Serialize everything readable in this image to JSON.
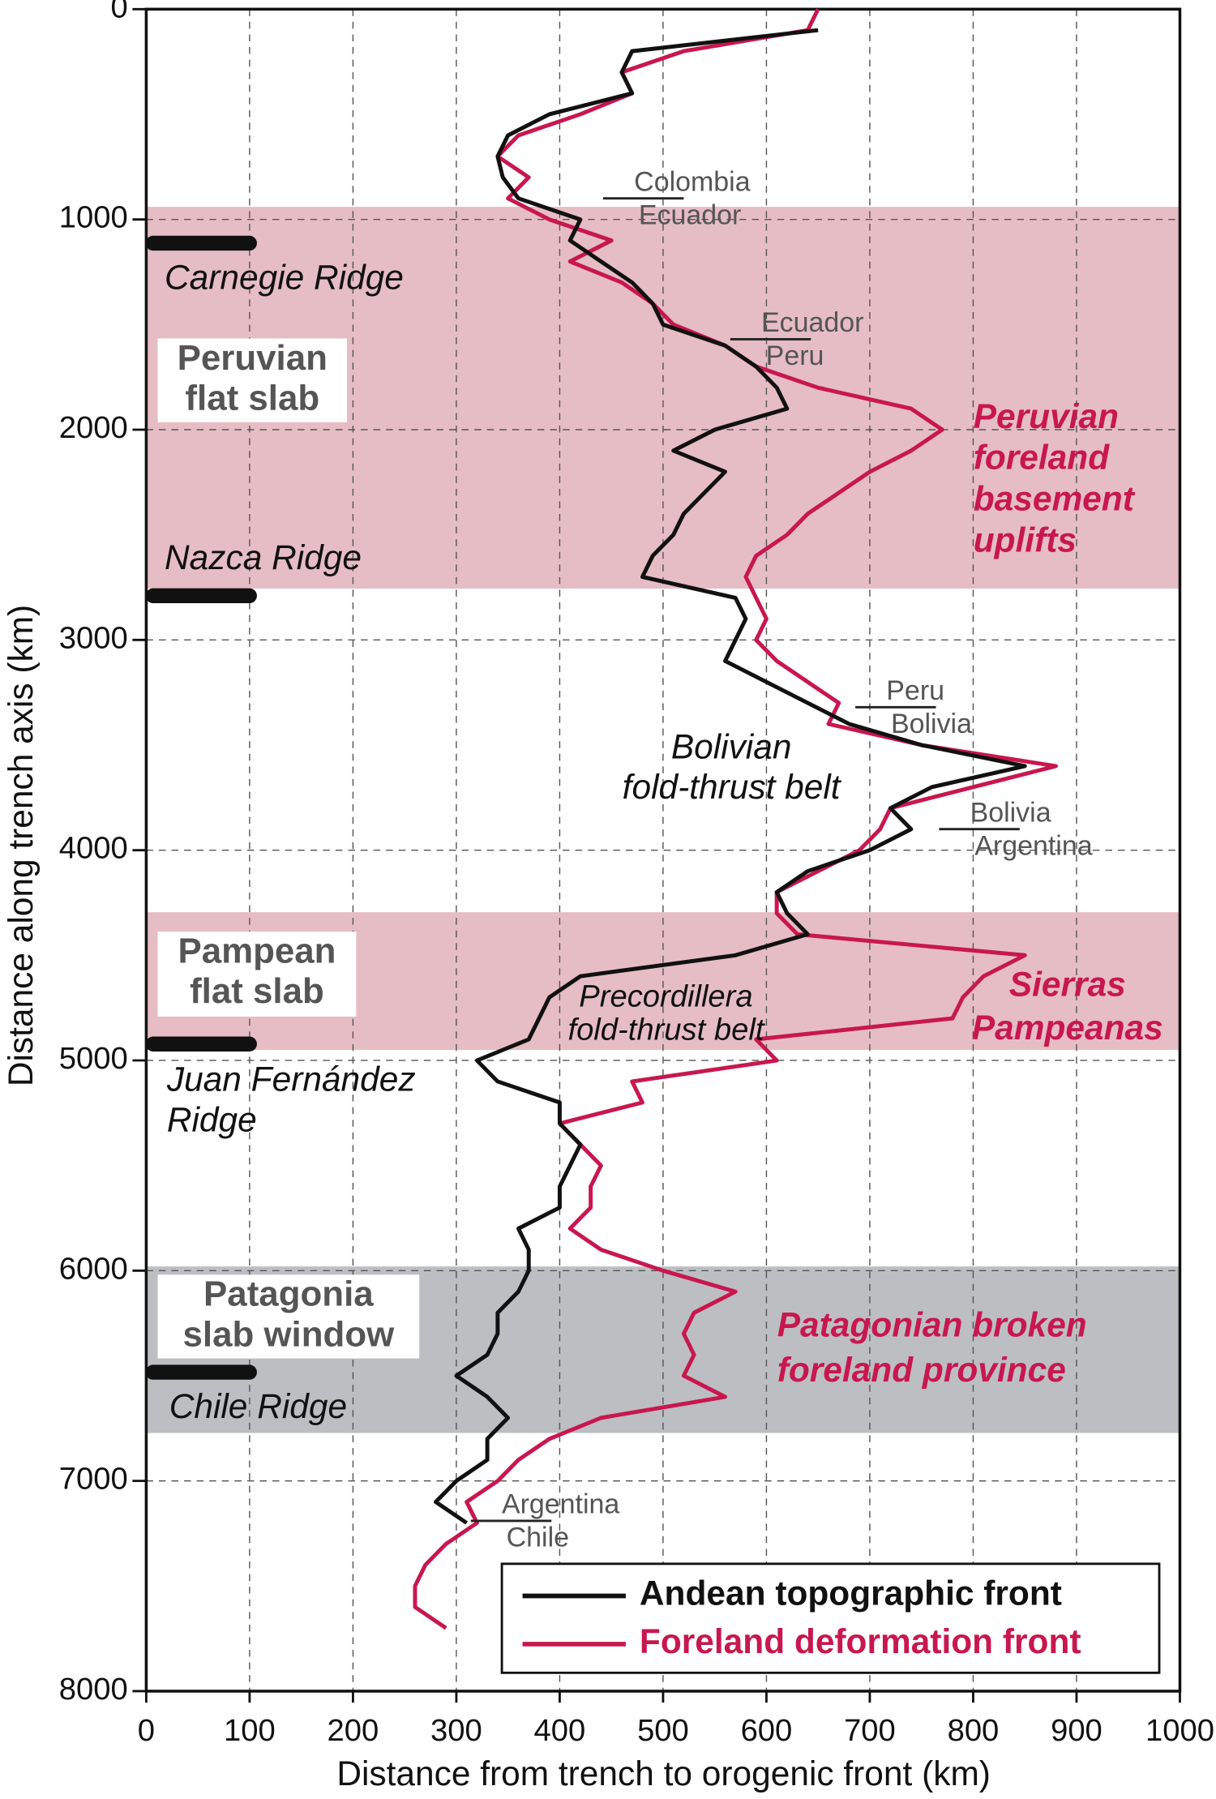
{
  "chart_data": {
    "type": "line",
    "x_label": "Distance from trench to orogenic front (km)",
    "y_label": "Distance along trench axis (km)",
    "xlim": [
      0,
      1000
    ],
    "xticks": [
      0,
      100,
      200,
      300,
      400,
      500,
      600,
      700,
      800,
      900,
      1000
    ],
    "ylim": [
      0,
      8000
    ],
    "yticks": [
      0,
      1000,
      2000,
      3000,
      4000,
      5000,
      6000,
      7000,
      8000
    ],
    "y_inverted": true,
    "grid": true,
    "legend": "lower right",
    "along": [
      0,
      100,
      200,
      300,
      400,
      500,
      600,
      700,
      800,
      900,
      1000,
      1100,
      1200,
      1300,
      1400,
      1500,
      1600,
      1700,
      1800,
      1900,
      2000,
      2100,
      2200,
      2300,
      2400,
      2500,
      2600,
      2700,
      2800,
      2900,
      3000,
      3100,
      3200,
      3300,
      3400,
      3500,
      3600,
      3700,
      3800,
      3900,
      4000,
      4100,
      4200,
      4300,
      4400,
      4500,
      4600,
      4700,
      4800,
      4900,
      5000,
      5100,
      5200,
      5300,
      5400,
      5500,
      5600,
      5700,
      5800,
      5900,
      6000,
      6100,
      6200,
      6300,
      6400,
      6500,
      6600,
      6700,
      6800,
      6900,
      7000,
      7100,
      7200,
      7300,
      7400,
      7500,
      7600,
      7700
    ],
    "series": [
      {
        "name": "Andean topographic front",
        "color": "#111111",
        "values": [
          null,
          650,
          470,
          460,
          470,
          390,
          350,
          340,
          345,
          360,
          420,
          410,
          440,
          470,
          490,
          500,
          560,
          590,
          610,
          620,
          550,
          510,
          560,
          540,
          520,
          510,
          490,
          480,
          570,
          580,
          570,
          560,
          600,
          640,
          680,
          750,
          850,
          760,
          720,
          740,
          700,
          640,
          610,
          620,
          640,
          570,
          420,
          390,
          380,
          370,
          320,
          340,
          400,
          400,
          420,
          410,
          400,
          400,
          360,
          370,
          370,
          360,
          340,
          340,
          330,
          300,
          330,
          350,
          330,
          330,
          300,
          280,
          310,
          null,
          null,
          null,
          null,
          null
        ]
      },
      {
        "name": "Foreland deformation front",
        "color": "#c8174f",
        "values": [
          650,
          640,
          520,
          460,
          470,
          420,
          360,
          340,
          370,
          350,
          390,
          450,
          410,
          460,
          490,
          510,
          560,
          590,
          650,
          740,
          770,
          740,
          700,
          670,
          640,
          620,
          590,
          580,
          590,
          600,
          590,
          610,
          640,
          670,
          660,
          750,
          880,
          800,
          720,
          710,
          690,
          650,
          610,
          610,
          630,
          850,
          810,
          790,
          780,
          590,
          610,
          470,
          480,
          400,
          420,
          440,
          430,
          430,
          410,
          440,
          500,
          570,
          530,
          520,
          530,
          520,
          560,
          440,
          390,
          360,
          340,
          310,
          320,
          290,
          270,
          260,
          260,
          290
        ]
      }
    ],
    "bands": [
      {
        "label": [
          "Peruvian",
          "flat slab"
        ],
        "from": 940,
        "to": 2756,
        "color": "#e6bdc4"
      },
      {
        "label": [
          "Pampean",
          "flat slab"
        ],
        "from": 4295,
        "to": 4950,
        "color": "#e6bdc4"
      },
      {
        "label": [
          "Patagonia",
          "slab window"
        ],
        "from": 5980,
        "to": 6772,
        "color": "#bdbec1"
      }
    ],
    "ridges": [
      {
        "label": [
          "Carnegie Ridge"
        ],
        "along": 1113
      },
      {
        "label": [
          "Nazca Ridge"
        ],
        "along": 2790
      },
      {
        "label": [
          "Juan Fernández",
          "Ridge"
        ],
        "along": 4922
      },
      {
        "label": [
          "Chile Ridge"
        ],
        "along": 6483
      }
    ],
    "borders": [
      {
        "north": "Colombia",
        "south": "Ecuador",
        "along": 900
      },
      {
        "north": "Ecuador",
        "south": "Peru",
        "along": 1570
      },
      {
        "north": "Peru",
        "south": "Bolivia",
        "along": 3320
      },
      {
        "north": "Bolivia",
        "south": "Argentina",
        "along": 3900
      },
      {
        "north": "Argentina",
        "south": "Chile",
        "along": 7190
      }
    ],
    "annotations": [
      {
        "lines": [
          "Peruvian",
          "foreland",
          "basement",
          "uplifts"
        ],
        "color": "#c8174f"
      },
      {
        "lines": [
          "Sierras",
          "Pampeanas"
        ],
        "color": "#c8174f"
      },
      {
        "lines": [
          "Patagonian broken",
          "foreland province"
        ],
        "color": "#c8174f"
      },
      {
        "lines": [
          "Bolivian",
          "fold-thrust belt"
        ],
        "color": "#111111"
      },
      {
        "lines": [
          "Precordillera",
          "fold-thrust belt"
        ],
        "color": "#111111"
      }
    ]
  }
}
